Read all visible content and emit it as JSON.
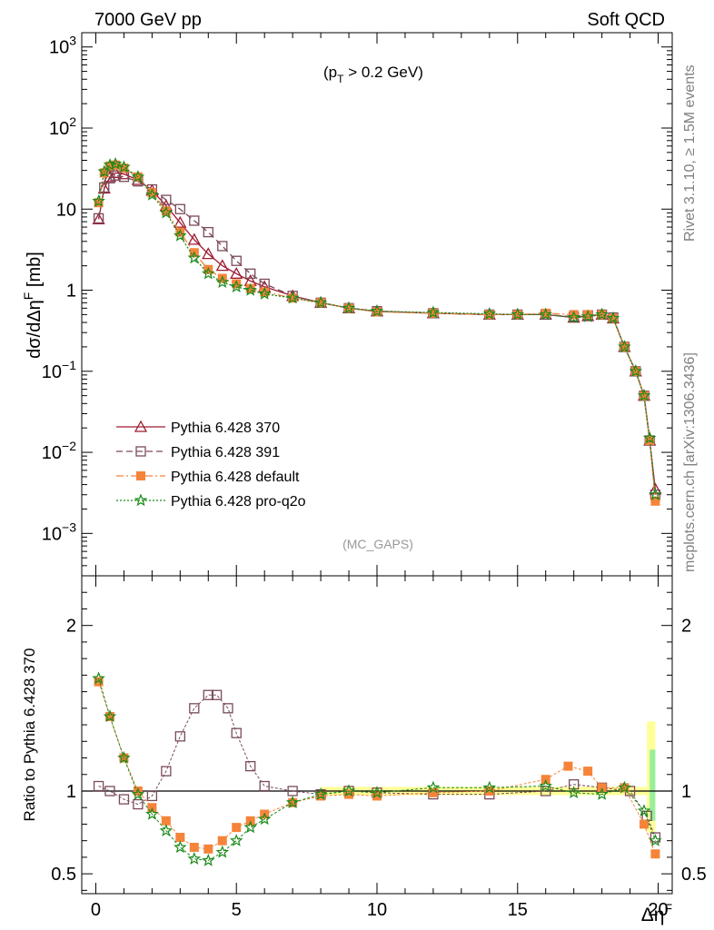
{
  "header": {
    "left": "7000 GeV pp",
    "right": "Soft QCD"
  },
  "side_texts": {
    "rivet": "Rivet 3.1.10, ≥ 1.5M events",
    "mcplots": "mcplots.cern.ch [arXiv:1306.3436]"
  },
  "chart_data": [
    {
      "type": "line",
      "panel": "main",
      "ylabel": "dσ/dΔηF [mb]",
      "ylabel_main": "dσ/dΔη",
      "ylabel_sup": "F",
      "ylabel_unit": " [mb]",
      "annotation": "(pT > 0.2 GeV)",
      "annotation_parts": {
        "open": "(p",
        "sub": "T",
        "rest": " > 0.2 GeV)"
      },
      "watermark": "(MC_GAPS)",
      "xlim": [
        -0.5,
        20.5
      ],
      "ylim": [
        0.0003,
        1500
      ],
      "yscale": "log",
      "xticks": [
        0,
        5,
        10,
        15,
        20
      ],
      "yticks": [
        {
          "value": 0.001,
          "base": "10",
          "exp": "−3"
        },
        {
          "value": 0.01,
          "base": "10",
          "exp": "−2"
        },
        {
          "value": 0.1,
          "base": "10",
          "exp": "−1"
        },
        {
          "value": 1,
          "label": "1"
        },
        {
          "value": 10,
          "label": "10"
        },
        {
          "value": 100,
          "base": "10",
          "exp": "2"
        },
        {
          "value": 1000,
          "base": "10",
          "exp": "3"
        }
      ],
      "legend_position": "lower-left",
      "series": [
        {
          "name": "Pythia 6.428 370",
          "color": "#9e1b32",
          "marker": "triangle",
          "dash": "solid",
          "points": [
            [
              0.1,
              7.5
            ],
            [
              0.3,
              18
            ],
            [
              0.5,
              25
            ],
            [
              0.7,
              28
            ],
            [
              1,
              27
            ],
            [
              1.5,
              23
            ],
            [
              2,
              17
            ],
            [
              2.5,
              11
            ],
            [
              3,
              6.8
            ],
            [
              3.5,
              4.2
            ],
            [
              4,
              2.8
            ],
            [
              4.5,
              2.0
            ],
            [
              5,
              1.6
            ],
            [
              5.5,
              1.3
            ],
            [
              6,
              1.1
            ],
            [
              7,
              0.85
            ],
            [
              8,
              0.7
            ],
            [
              9,
              0.6
            ],
            [
              10,
              0.55
            ],
            [
              12,
              0.52
            ],
            [
              14,
              0.5
            ],
            [
              15,
              0.5
            ],
            [
              16,
              0.5
            ],
            [
              17,
              0.46
            ],
            [
              17.5,
              0.48
            ],
            [
              18,
              0.5
            ],
            [
              18.4,
              0.45
            ],
            [
              18.8,
              0.2
            ],
            [
              19.2,
              0.1
            ],
            [
              19.5,
              0.05
            ],
            [
              19.7,
              0.014
            ],
            [
              19.9,
              0.0035
            ]
          ]
        },
        {
          "name": "Pythia 6.428 391",
          "color": "#7a4a5a",
          "marker": "square-open",
          "dash": "dashed",
          "points": [
            [
              0.1,
              7.7
            ],
            [
              0.3,
              18.5
            ],
            [
              0.5,
              24
            ],
            [
              0.7,
              26
            ],
            [
              1,
              25
            ],
            [
              1.5,
              22
            ],
            [
              2,
              17.5
            ],
            [
              2.5,
              13
            ],
            [
              3,
              10
            ],
            [
              3.5,
              7.2
            ],
            [
              4,
              5.2
            ],
            [
              4.5,
              3.5
            ],
            [
              5,
              2.3
            ],
            [
              5.5,
              1.6
            ],
            [
              6,
              1.2
            ],
            [
              7,
              0.85
            ],
            [
              8,
              0.7
            ],
            [
              9,
              0.6
            ],
            [
              10,
              0.55
            ],
            [
              12,
              0.52
            ],
            [
              14,
              0.5
            ],
            [
              15,
              0.5
            ],
            [
              16,
              0.5
            ],
            [
              17,
              0.47
            ],
            [
              17.5,
              0.49
            ],
            [
              18,
              0.5
            ],
            [
              18.4,
              0.46
            ],
            [
              18.8,
              0.2
            ],
            [
              19.2,
              0.1
            ],
            [
              19.5,
              0.05
            ],
            [
              19.7,
              0.014
            ],
            [
              19.9,
              0.003
            ]
          ]
        },
        {
          "name": "Pythia 6.428 default",
          "color": "#f5843a",
          "marker": "square-filled",
          "dash": "dash-dot",
          "points": [
            [
              0.1,
              12
            ],
            [
              0.3,
              28
            ],
            [
              0.5,
              34
            ],
            [
              0.7,
              35
            ],
            [
              1,
              32
            ],
            [
              1.5,
              25
            ],
            [
              2,
              16
            ],
            [
              2.5,
              9.5
            ],
            [
              3,
              5.2
            ],
            [
              3.5,
              2.9
            ],
            [
              4,
              1.8
            ],
            [
              4.5,
              1.4
            ],
            [
              5,
              1.2
            ],
            [
              5.5,
              1.05
            ],
            [
              6,
              0.95
            ],
            [
              7,
              0.8
            ],
            [
              8,
              0.7
            ],
            [
              9,
              0.6
            ],
            [
              10,
              0.54
            ],
            [
              12,
              0.52
            ],
            [
              14,
              0.5
            ],
            [
              15,
              0.5
            ],
            [
              16,
              0.52
            ],
            [
              17,
              0.5
            ],
            [
              17.5,
              0.5
            ],
            [
              18,
              0.5
            ],
            [
              18.4,
              0.45
            ],
            [
              18.8,
              0.2
            ],
            [
              19.2,
              0.1
            ],
            [
              19.5,
              0.05
            ],
            [
              19.7,
              0.014
            ],
            [
              19.9,
              0.0025
            ]
          ]
        },
        {
          "name": "Pythia 6.428 pro-q2o",
          "color": "#1a8a1a",
          "marker": "star",
          "dash": "dotted",
          "points": [
            [
              0.1,
              12.5
            ],
            [
              0.3,
              29
            ],
            [
              0.5,
              35
            ],
            [
              0.7,
              36
            ],
            [
              1,
              33
            ],
            [
              1.5,
              25
            ],
            [
              2,
              15
            ],
            [
              2.5,
              9
            ],
            [
              3,
              4.7
            ],
            [
              3.5,
              2.5
            ],
            [
              4,
              1.6
            ],
            [
              4.5,
              1.25
            ],
            [
              5,
              1.1
            ],
            [
              5.5,
              1.0
            ],
            [
              6,
              0.9
            ],
            [
              7,
              0.8
            ],
            [
              8,
              0.7
            ],
            [
              9,
              0.6
            ],
            [
              10,
              0.55
            ],
            [
              12,
              0.53
            ],
            [
              14,
              0.51
            ],
            [
              15,
              0.5
            ],
            [
              16,
              0.5
            ],
            [
              17,
              0.46
            ],
            [
              17.5,
              0.47
            ],
            [
              18,
              0.5
            ],
            [
              18.4,
              0.45
            ],
            [
              18.8,
              0.2
            ],
            [
              19.2,
              0.1
            ],
            [
              19.5,
              0.05
            ],
            [
              19.7,
              0.015
            ],
            [
              19.9,
              0.003
            ]
          ]
        }
      ]
    },
    {
      "type": "line",
      "panel": "ratio",
      "ylabel": "Ratio to Pythia 6.428 370",
      "xlabel": "ΔηF",
      "xlabel_main": "Δη",
      "xlabel_sup": "F",
      "xlim": [
        -0.5,
        20.5
      ],
      "ylim": [
        0.38,
        2.3
      ],
      "xticks": [
        0,
        5,
        10,
        15,
        20
      ],
      "xtick_labels": [
        "0",
        "5",
        "10",
        "15",
        "20"
      ],
      "yticks": [
        0.5,
        1,
        2
      ],
      "ytick_labels": [
        "0.5",
        "1",
        "2"
      ],
      "ytick_labels_right": [
        "0.5",
        "1",
        "2"
      ],
      "band": {
        "color_outer": "#ffff99",
        "color_inner": "#99ee99"
      },
      "series": [
        {
          "name": "Pythia 6.428 391",
          "color": "#7a4a5a",
          "marker": "square-open",
          "points": [
            [
              0.1,
              1.03
            ],
            [
              0.5,
              1.0
            ],
            [
              1,
              0.95
            ],
            [
              1.5,
              0.92
            ],
            [
              2,
              0.97
            ],
            [
              2.5,
              1.12
            ],
            [
              3,
              1.33
            ],
            [
              3.5,
              1.5
            ],
            [
              4,
              1.58
            ],
            [
              4.3,
              1.58
            ],
            [
              4.7,
              1.5
            ],
            [
              5,
              1.35
            ],
            [
              5.5,
              1.15
            ],
            [
              6,
              1.03
            ],
            [
              7,
              1.0
            ],
            [
              8,
              0.98
            ],
            [
              9,
              1.0
            ],
            [
              10,
              0.99
            ],
            [
              12,
              0.98
            ],
            [
              14,
              0.98
            ],
            [
              16,
              1.0
            ],
            [
              17,
              1.04
            ],
            [
              18,
              1.02
            ],
            [
              19,
              1.0
            ],
            [
              19.6,
              0.85
            ],
            [
              19.9,
              0.72
            ]
          ]
        },
        {
          "name": "Pythia 6.428 default",
          "color": "#f5843a",
          "marker": "square-filled",
          "points": [
            [
              0.1,
              1.66
            ],
            [
              0.5,
              1.45
            ],
            [
              1,
              1.2
            ],
            [
              1.5,
              1.0
            ],
            [
              2,
              0.9
            ],
            [
              2.5,
              0.82
            ],
            [
              3,
              0.72
            ],
            [
              3.5,
              0.66
            ],
            [
              4,
              0.65
            ],
            [
              4.5,
              0.7
            ],
            [
              5,
              0.78
            ],
            [
              5.5,
              0.82
            ],
            [
              6,
              0.86
            ],
            [
              7,
              0.93
            ],
            [
              8,
              0.97
            ],
            [
              9,
              0.98
            ],
            [
              10,
              0.97
            ],
            [
              12,
              0.99
            ],
            [
              14,
              1.0
            ],
            [
              16,
              1.07
            ],
            [
              16.8,
              1.15
            ],
            [
              17.5,
              1.12
            ],
            [
              18,
              1.02
            ],
            [
              18.8,
              1.02
            ],
            [
              19.5,
              0.8
            ],
            [
              19.9,
              0.62
            ]
          ]
        },
        {
          "name": "Pythia 6.428 pro-q2o",
          "color": "#1a8a1a",
          "marker": "star",
          "points": [
            [
              0.1,
              1.68
            ],
            [
              0.5,
              1.45
            ],
            [
              1,
              1.2
            ],
            [
              1.5,
              0.98
            ],
            [
              2,
              0.86
            ],
            [
              2.5,
              0.76
            ],
            [
              3,
              0.66
            ],
            [
              3.5,
              0.59
            ],
            [
              4,
              0.58
            ],
            [
              4.5,
              0.63
            ],
            [
              5,
              0.7
            ],
            [
              5.5,
              0.78
            ],
            [
              6,
              0.83
            ],
            [
              7,
              0.93
            ],
            [
              8,
              0.98
            ],
            [
              9,
              1.0
            ],
            [
              10,
              0.99
            ],
            [
              12,
              1.02
            ],
            [
              14,
              1.02
            ],
            [
              16,
              1.03
            ],
            [
              17,
              0.99
            ],
            [
              18,
              0.98
            ],
            [
              18.8,
              1.02
            ],
            [
              19.5,
              0.88
            ],
            [
              19.9,
              0.7
            ]
          ]
        }
      ]
    }
  ]
}
